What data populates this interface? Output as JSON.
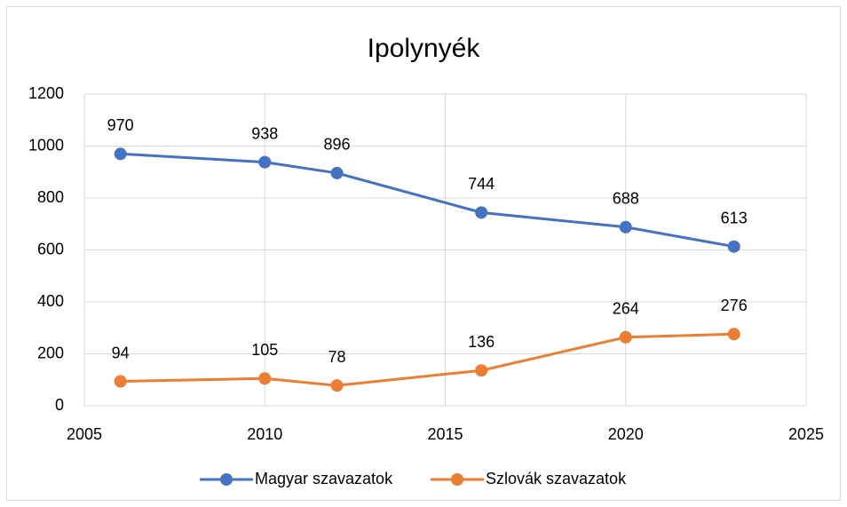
{
  "chart_data": {
    "type": "line",
    "title": "Ipolynyék",
    "x": [
      2006,
      2010,
      2012,
      2016,
      2020,
      2023
    ],
    "series": [
      {
        "name": "Magyar szavazatok",
        "color": "#4472c4",
        "values": [
          970,
          938,
          896,
          744,
          688,
          613
        ]
      },
      {
        "name": "Szlovák szavazatok",
        "color": "#ed7d31",
        "values": [
          94,
          105,
          78,
          136,
          264,
          276
        ]
      }
    ],
    "xlim": [
      2005,
      2025
    ],
    "xticks": [
      2005,
      2010,
      2015,
      2020,
      2025
    ],
    "ylim": [
      0,
      1200
    ],
    "yticks": [
      0,
      200,
      400,
      600,
      800,
      1000,
      1200
    ],
    "grid": true,
    "legend": "bottom"
  }
}
